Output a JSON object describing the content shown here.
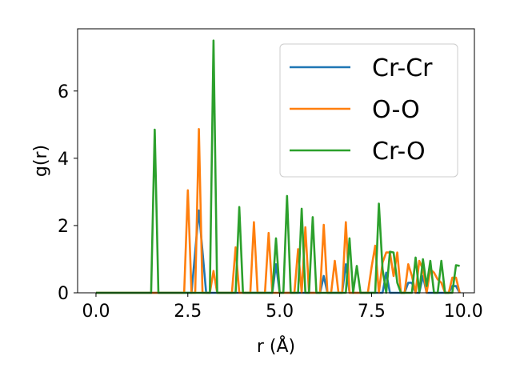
{
  "chart_data": {
    "type": "line",
    "xlabel": "r (Å)",
    "ylabel": "g(r)",
    "xlim": [
      -0.5,
      10.3
    ],
    "ylim": [
      0,
      7.85
    ],
    "xticks": [
      0.0,
      2.5,
      5.0,
      7.5,
      10.0
    ],
    "xtick_labels": [
      "0.0",
      "2.5",
      "5.0",
      "7.5",
      "10.0"
    ],
    "yticks": [
      0,
      2,
      4,
      6
    ],
    "ytick_labels": [
      "0",
      "2",
      "4",
      "6"
    ],
    "grid": false,
    "legend_position": "top-right",
    "series": [
      {
        "name": "Cr-Cr",
        "color": "#1f77b4",
        "points": [
          [
            0.0,
            0
          ],
          [
            2.6,
            0
          ],
          [
            2.8,
            2.45
          ],
          [
            3.0,
            0
          ],
          [
            4.8,
            0
          ],
          [
            4.9,
            0.85
          ],
          [
            5.0,
            0
          ],
          [
            6.1,
            0
          ],
          [
            6.2,
            0.5
          ],
          [
            6.3,
            0
          ],
          [
            6.7,
            0
          ],
          [
            6.8,
            0.85
          ],
          [
            6.9,
            0
          ],
          [
            7.8,
            0
          ],
          [
            7.9,
            0.6
          ],
          [
            8.0,
            0
          ],
          [
            8.4,
            0
          ],
          [
            8.5,
            0.3
          ],
          [
            8.6,
            0.3
          ],
          [
            8.7,
            0
          ],
          [
            8.8,
            0
          ],
          [
            8.9,
            0.5
          ],
          [
            9.0,
            0
          ],
          [
            9.6,
            0
          ],
          [
            9.7,
            0.2
          ],
          [
            9.8,
            0.2
          ],
          [
            9.9,
            0
          ]
        ]
      },
      {
        "name": "O-O",
        "color": "#ff7f0e",
        "points": [
          [
            0.0,
            0
          ],
          [
            2.4,
            0
          ],
          [
            2.5,
            3.05
          ],
          [
            2.6,
            0
          ],
          [
            2.7,
            0
          ],
          [
            2.8,
            4.87
          ],
          [
            2.9,
            0
          ],
          [
            3.1,
            0
          ],
          [
            3.2,
            0.65
          ],
          [
            3.3,
            0
          ],
          [
            3.7,
            0
          ],
          [
            3.8,
            1.35
          ],
          [
            3.9,
            0
          ],
          [
            4.2,
            0
          ],
          [
            4.3,
            2.1
          ],
          [
            4.4,
            0
          ],
          [
            4.6,
            0
          ],
          [
            4.7,
            1.78
          ],
          [
            4.8,
            0
          ],
          [
            5.4,
            0
          ],
          [
            5.5,
            1.3
          ],
          [
            5.6,
            0
          ],
          [
            5.7,
            1.95
          ],
          [
            5.8,
            0
          ],
          [
            6.1,
            0
          ],
          [
            6.2,
            2.02
          ],
          [
            6.3,
            0
          ],
          [
            6.4,
            0
          ],
          [
            6.5,
            0.95
          ],
          [
            6.6,
            0
          ],
          [
            6.7,
            0
          ],
          [
            6.8,
            2.1
          ],
          [
            6.9,
            0
          ],
          [
            7.4,
            0
          ],
          [
            7.5,
            0.75
          ],
          [
            7.6,
            1.4
          ],
          [
            7.7,
            0
          ],
          [
            7.8,
            0.9
          ],
          [
            7.9,
            1.2
          ],
          [
            8.0,
            1.2
          ],
          [
            8.1,
            0.5
          ],
          [
            8.2,
            1.2
          ],
          [
            8.3,
            0
          ],
          [
            8.4,
            0
          ],
          [
            8.5,
            0.85
          ],
          [
            8.6,
            0.5
          ],
          [
            8.7,
            0
          ],
          [
            8.8,
            0.95
          ],
          [
            8.9,
            0.7
          ],
          [
            9.0,
            0
          ],
          [
            9.1,
            0.7
          ],
          [
            9.2,
            0.6
          ],
          [
            9.3,
            0.4
          ],
          [
            9.4,
            0.3
          ],
          [
            9.5,
            0
          ],
          [
            9.6,
            0
          ],
          [
            9.7,
            0.45
          ],
          [
            9.8,
            0.45
          ],
          [
            9.9,
            0
          ]
        ]
      },
      {
        "name": "Cr-O",
        "color": "#2ca02c",
        "points": [
          [
            0.0,
            0
          ],
          [
            1.5,
            0
          ],
          [
            1.6,
            4.85
          ],
          [
            1.7,
            0
          ],
          [
            3.1,
            0
          ],
          [
            3.2,
            7.5
          ],
          [
            3.3,
            0
          ],
          [
            3.8,
            0
          ],
          [
            3.9,
            2.55
          ],
          [
            4.0,
            0
          ],
          [
            4.8,
            0
          ],
          [
            4.9,
            1.62
          ],
          [
            5.0,
            0
          ],
          [
            5.1,
            0
          ],
          [
            5.2,
            2.88
          ],
          [
            5.3,
            0
          ],
          [
            5.5,
            0
          ],
          [
            5.6,
            2.5
          ],
          [
            5.7,
            0
          ],
          [
            5.8,
            0
          ],
          [
            5.9,
            2.25
          ],
          [
            6.0,
            0
          ],
          [
            6.8,
            0
          ],
          [
            6.9,
            1.62
          ],
          [
            7.0,
            0
          ],
          [
            7.1,
            0.8
          ],
          [
            7.2,
            0
          ],
          [
            7.6,
            0
          ],
          [
            7.7,
            2.65
          ],
          [
            7.8,
            0.7
          ],
          [
            7.9,
            0
          ],
          [
            8.0,
            1.22
          ],
          [
            8.1,
            1.2
          ],
          [
            8.2,
            0.3
          ],
          [
            8.3,
            0
          ],
          [
            8.6,
            0
          ],
          [
            8.7,
            1.05
          ],
          [
            8.8,
            0
          ],
          [
            8.9,
            1.0
          ],
          [
            9.0,
            0.2
          ],
          [
            9.1,
            0.95
          ],
          [
            9.2,
            0
          ],
          [
            9.3,
            0
          ],
          [
            9.4,
            0.95
          ],
          [
            9.5,
            0
          ],
          [
            9.6,
            0
          ],
          [
            9.7,
            0
          ],
          [
            9.8,
            0.82
          ],
          [
            9.9,
            0.8
          ]
        ]
      }
    ]
  }
}
